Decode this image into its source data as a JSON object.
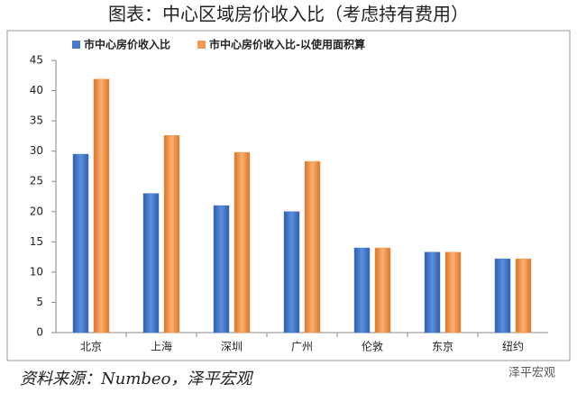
{
  "chart_data": {
    "type": "bar",
    "title": "图表：中心区域房价收入比（考虑持有费用）",
    "categories": [
      "北京",
      "上海",
      "深圳",
      "广州",
      "伦敦",
      "东京",
      "纽约"
    ],
    "series": [
      {
        "name": "市中心房价收入比",
        "color": "#4a7ccc",
        "values": [
          29.5,
          23,
          21,
          20,
          14,
          13.3,
          12.2
        ]
      },
      {
        "name": "市中心房价收入比-以使用面积算",
        "color": "#f29a50",
        "values": [
          41.9,
          32.6,
          29.8,
          28.3,
          14,
          13.3,
          12.2
        ]
      }
    ],
    "ylim": [
      0,
      45
    ],
    "yticks": [
      0,
      5,
      10,
      15,
      20,
      25,
      30,
      35,
      40,
      45
    ],
    "legend": "top-left",
    "source": "资料来源：Numbeo，泽平宏观",
    "watermark": "泽平宏观"
  }
}
